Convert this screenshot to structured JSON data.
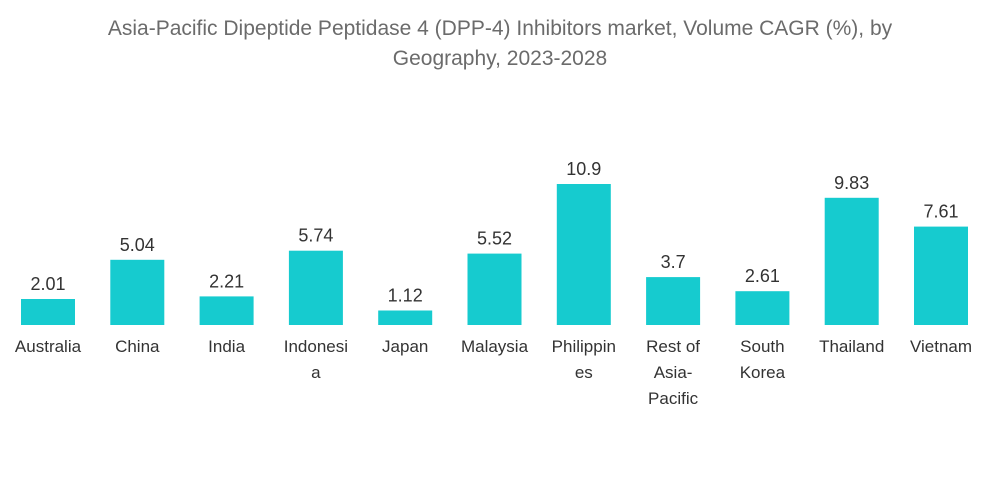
{
  "title_line1": "Asia-Pacific Dipeptide Peptidase 4 (DPP-4) Inhibitors market, Volume CAGR (%), by",
  "title_line2": "Geography, 2023-2028",
  "chart_data": {
    "type": "bar",
    "title": "Asia-Pacific Dipeptide Peptidase 4 (DPP-4) Inhibitors market, Volume CAGR (%), by Geography, 2023-2028",
    "categories": [
      "Australia",
      "China",
      "India",
      "Indonesia",
      "Japan",
      "Malaysia",
      "Philippines",
      "Rest of Asia-Pacific",
      "South Korea",
      "Thailand",
      "Vietnam"
    ],
    "category_label_lines": [
      [
        "Australia"
      ],
      [
        "China"
      ],
      [
        "India"
      ],
      [
        "Indonesi",
        "a"
      ],
      [
        "Japan"
      ],
      [
        "Malaysia"
      ],
      [
        "Philippin",
        "es"
      ],
      [
        "Rest of",
        "Asia-",
        "Pacific"
      ],
      [
        "South",
        "Korea"
      ],
      [
        "Thailand"
      ],
      [
        "Vietnam"
      ]
    ],
    "values": [
      2.01,
      5.04,
      2.21,
      5.74,
      1.12,
      5.52,
      10.9,
      3.7,
      2.61,
      9.83,
      7.61
    ],
    "value_labels": [
      "2.01",
      "5.04",
      "2.21",
      "5.74",
      "1.12",
      "5.52",
      "10.9",
      "3.7",
      "2.61",
      "9.83",
      "7.61"
    ],
    "xlabel": "",
    "ylabel": "",
    "ylim": [
      0,
      10.9
    ],
    "grid": false,
    "bar_color": "#16cbcf"
  }
}
